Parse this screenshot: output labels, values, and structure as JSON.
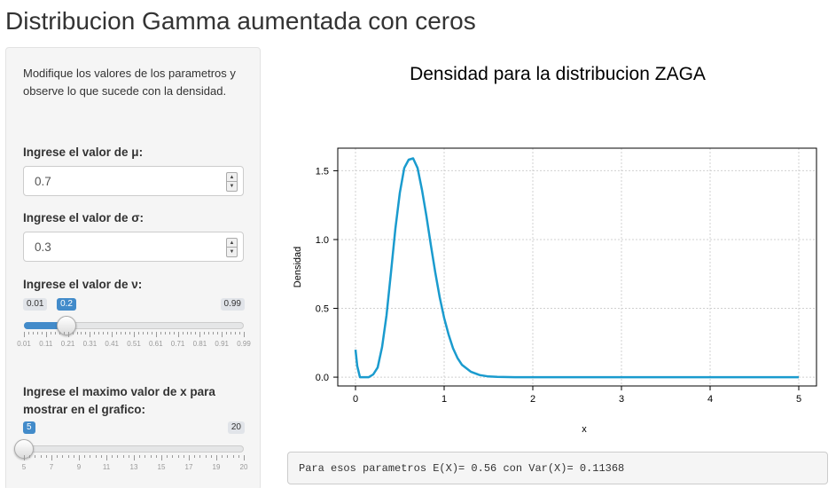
{
  "page": {
    "title": "Distribucion Gamma aumentada con ceros"
  },
  "sidebar": {
    "intro": "Modifique los valores de los parametros y observe lo que sucede con la densidad.",
    "mu": {
      "label": "Ingrese el valor de μ:",
      "value": "0.7"
    },
    "sigma": {
      "label": "Ingrese el valor de σ:",
      "value": "0.3"
    },
    "nu": {
      "label": "Ingrese el valor de ν:",
      "min": "0.01",
      "max": "0.99",
      "value": "0.2",
      "value_num": 0.2,
      "min_num": 0.01,
      "max_num": 0.99,
      "tick_labels": [
        "0.01",
        "0.11",
        "0.21",
        "0.31",
        "0.41",
        "0.51",
        "0.61",
        "0.71",
        "0.81",
        "0.91",
        "0.99"
      ]
    },
    "xmax": {
      "label": "Ingrese el maximo valor de x para mostrar en el grafico:",
      "min": "5",
      "max": "20",
      "value": "5",
      "value_num": 5,
      "min_num": 5,
      "max_num": 20,
      "tick_labels": [
        "5",
        "7",
        "9",
        "11",
        "13",
        "15",
        "17",
        "19",
        "20"
      ]
    }
  },
  "plot": {
    "title": "Densidad para la distribucion ZAGA"
  },
  "result": {
    "text": "Para esos parametros E(X)= 0.56 con Var(X)= 0.11368"
  },
  "colors": {
    "line": "#1a9bce",
    "slider_accent": "#428bca"
  },
  "chart_data": {
    "type": "line",
    "title": "Densidad para la distribucion ZAGA",
    "xlabel": "x",
    "ylabel": "Densidad",
    "xlim": [
      0,
      5
    ],
    "ylim": [
      0,
      1.6
    ],
    "xticks": [
      "0",
      "1",
      "2",
      "3",
      "4",
      "5"
    ],
    "yticks": [
      "0.0",
      "0.5",
      "1.0",
      "1.5"
    ],
    "grid": true,
    "x": [
      0,
      0.02,
      0.05,
      0.1,
      0.15,
      0.2,
      0.25,
      0.3,
      0.35,
      0.4,
      0.45,
      0.5,
      0.55,
      0.6,
      0.65,
      0.7,
      0.75,
      0.8,
      0.85,
      0.9,
      0.95,
      1.0,
      1.05,
      1.1,
      1.15,
      1.2,
      1.3,
      1.4,
      1.5,
      1.6,
      1.8,
      2.0,
      3.0,
      4.0,
      5.0
    ],
    "y": [
      0.2,
      0.08,
      0.0,
      0.0,
      0.0,
      0.02,
      0.07,
      0.22,
      0.45,
      0.76,
      1.08,
      1.34,
      1.52,
      1.58,
      1.59,
      1.52,
      1.36,
      1.17,
      0.96,
      0.76,
      0.58,
      0.43,
      0.31,
      0.21,
      0.14,
      0.09,
      0.04,
      0.015,
      0.005,
      0.002,
      0.0,
      0.0,
      0.0,
      0.0,
      0.0
    ]
  }
}
